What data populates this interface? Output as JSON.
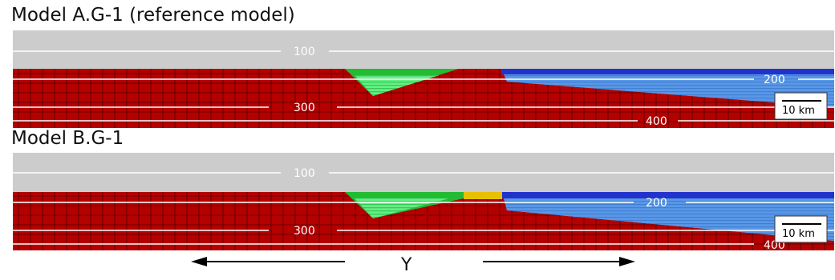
{
  "panels": [
    {
      "title": "Model A.G-1 (reference model)",
      "contour_labels": [
        "100",
        "200",
        "300",
        "400"
      ],
      "scale_bar": "10 km",
      "has_yellow_unit": false
    },
    {
      "title": "Model B.G-1",
      "contour_labels": [
        "100",
        "200",
        "300",
        "400"
      ],
      "scale_bar": "10 km",
      "has_yellow_unit": true
    }
  ],
  "axis": {
    "label": "Y"
  },
  "colors": {
    "air": "#cccccc",
    "crust": "#b50000",
    "green_basin": "#22bb33",
    "light_green": "#66ee88",
    "yellow_unit": "#e8c000",
    "dark_blue": "#2233cc",
    "light_blue": "#4f8fe0",
    "contour": "#ffffff",
    "mesh": "#000000"
  }
}
